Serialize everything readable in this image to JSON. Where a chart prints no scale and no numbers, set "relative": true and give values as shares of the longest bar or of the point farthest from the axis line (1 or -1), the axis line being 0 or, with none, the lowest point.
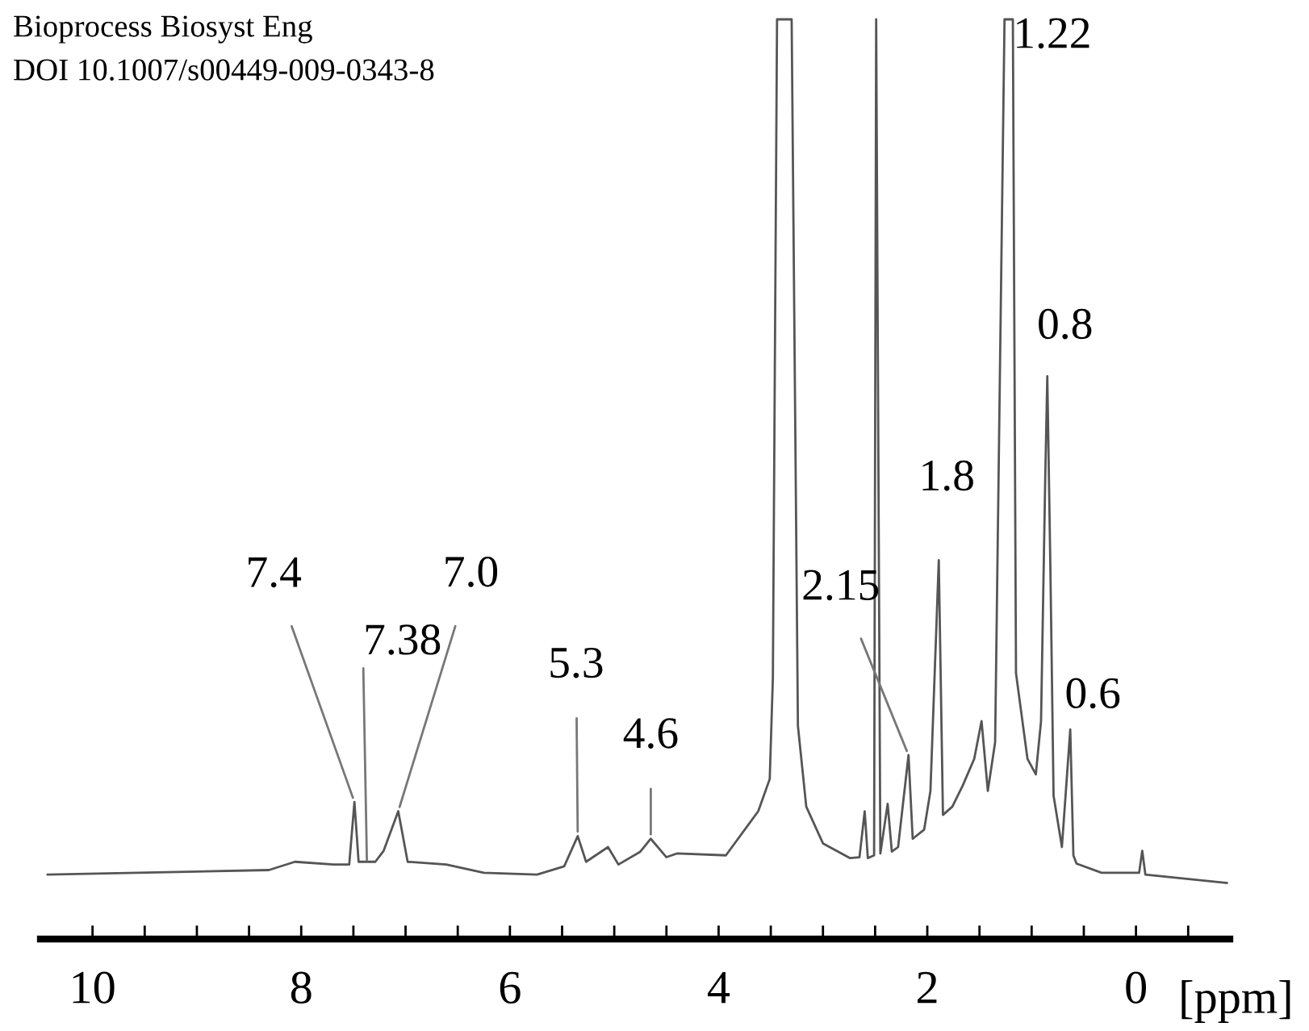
{
  "chart_data": {
    "type": "line",
    "relative": true,
    "color": "#555555",
    "xlabel": "[ppm]",
    "xlim": [
      10.5,
      -0.9
    ],
    "xticks": [
      {
        "value": 10,
        "label": "10"
      },
      {
        "value": 9.5,
        "label": null
      },
      {
        "value": 9,
        "label": null
      },
      {
        "value": 8.5,
        "label": null
      },
      {
        "value": 8,
        "label": "8"
      },
      {
        "value": 7.5,
        "label": null
      },
      {
        "value": 7,
        "label": null
      },
      {
        "value": 6.5,
        "label": null
      },
      {
        "value": 6,
        "label": "6"
      },
      {
        "value": 5.5,
        "label": null
      },
      {
        "value": 5,
        "label": null
      },
      {
        "value": 4.5,
        "label": null
      },
      {
        "value": 4,
        "label": "4"
      },
      {
        "value": 3.5,
        "label": null
      },
      {
        "value": 3,
        "label": null
      },
      {
        "value": 2.5,
        "label": null
      },
      {
        "value": 2,
        "label": "2"
      },
      {
        "value": 1.5,
        "label": null
      },
      {
        "value": 1,
        "label": null
      },
      {
        "value": 0.5,
        "label": null
      },
      {
        "value": 0,
        "label": "0"
      },
      {
        "value": -0.5,
        "label": null
      }
    ],
    "tick_labels": "x",
    "grid": false,
    "legend": false,
    "marker": "none",
    "line_style": "solid",
    "x": [
      10.43,
      8.31,
      8.06,
      7.69,
      7.54,
      7.49,
      7.45,
      7.29,
      7.21,
      7.07,
      6.98,
      6.61,
      6.25,
      5.74,
      5.48,
      5.35,
      5.27,
      5.06,
      4.96,
      4.75,
      4.65,
      4.5,
      4.4,
      3.93,
      3.62,
      3.51,
      3.48,
      3.44,
      3.3,
      3.24,
      3.16,
      3.0,
      2.74,
      2.65,
      2.6,
      2.57,
      2.51,
      2.49,
      2.45,
      2.38,
      2.34,
      2.28,
      2.18,
      2.14,
      2.03,
      1.97,
      1.89,
      1.85,
      1.76,
      1.66,
      1.55,
      1.48,
      1.42,
      1.35,
      1.26,
      1.18,
      1.15,
      1.04,
      0.96,
      0.91,
      0.87,
      0.85,
      0.82,
      0.79,
      0.71,
      0.63,
      0.6,
      0.57,
      0.33,
      -0.03,
      -0.06,
      -0.09,
      -0.87
    ],
    "values": [
      0.07,
      0.075,
      0.084,
      0.081,
      0.081,
      0.149,
      0.084,
      0.084,
      0.096,
      0.139,
      0.084,
      0.081,
      0.072,
      0.07,
      0.079,
      0.112,
      0.084,
      0.1,
      0.081,
      0.095,
      0.109,
      0.089,
      0.093,
      0.091,
      0.139,
      0.174,
      0.284,
      1,
      1,
      0.232,
      0.144,
      0.104,
      0.088,
      0.089,
      0.139,
      0.088,
      0.091,
      1,
      0.093,
      0.147,
      0.095,
      0.1,
      0.2,
      0.109,
      0.119,
      0.161,
      0.412,
      0.135,
      0.144,
      0.167,
      0.196,
      0.237,
      0.161,
      0.214,
      1,
      1,
      0.289,
      0.196,
      0.179,
      0.237,
      0.5,
      0.612,
      0.4,
      0.156,
      0.1,
      0.228,
      0.091,
      0.082,
      0.072,
      0.072,
      0.096,
      0.07,
      0.061
    ],
    "annotations": [
      "Bioprocess Biosyst Eng",
      "DOI 10.1007/s00449-009-0343-8",
      {
        "text": "7.4",
        "x": 7.49,
        "y": 0.149
      },
      {
        "text": "7.38",
        "x": 7.37,
        "y": 0.081
      },
      {
        "text": "7.0",
        "x": 7.07,
        "y": 0.139
      },
      {
        "text": "5.3",
        "x": 5.35,
        "y": 0.112
      },
      {
        "text": "4.6",
        "x": 4.65,
        "y": 0.109
      },
      {
        "text": "2.15",
        "x": 2.18,
        "y": 0.2
      },
      {
        "text": "1.8",
        "x": 1.89,
        "y": 0.412
      },
      {
        "text": "1.22",
        "x": 1.22,
        "y": 1
      },
      {
        "text": "0.8",
        "x": 0.85,
        "y": 0.612
      },
      {
        "text": "0.6",
        "x": 0.63,
        "y": 0.228
      }
    ]
  }
}
